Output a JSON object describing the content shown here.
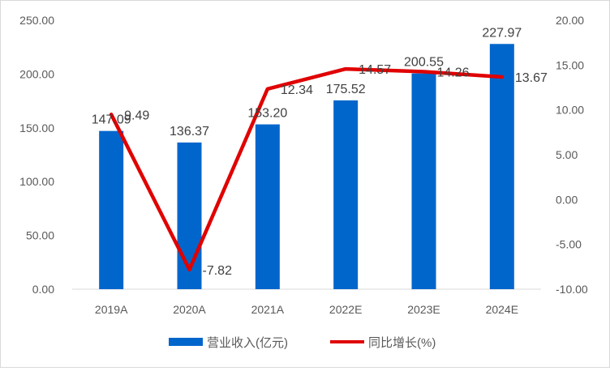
{
  "chart_data": {
    "type": "bar",
    "categories": [
      "2019A",
      "2020A",
      "2021A",
      "2022E",
      "2023E",
      "2024E"
    ],
    "series": [
      {
        "name": "营业收入(亿元)",
        "type": "bar",
        "axis": "left",
        "color": "#0066CC",
        "values": [
          147.09,
          136.37,
          153.2,
          175.52,
          200.55,
          227.97
        ],
        "labels": [
          "147.09",
          "136.37",
          "153.20",
          "175.52",
          "200.55",
          "227.97"
        ]
      },
      {
        "name": "同比增长(%)",
        "type": "line",
        "axis": "right",
        "color": "#E00000",
        "values": [
          9.49,
          -7.82,
          12.34,
          14.57,
          14.26,
          13.67
        ],
        "labels": [
          "9.49",
          "-7.82",
          "12.34",
          "14.57",
          "14.26",
          "13.67"
        ]
      }
    ],
    "y_left": {
      "min": 0,
      "max": 250,
      "step": 50,
      "tick_labels": [
        "0.00",
        "50.00",
        "100.00",
        "150.00",
        "200.00",
        "250.00"
      ]
    },
    "y_right": {
      "min": -10,
      "max": 20,
      "step": 5,
      "tick_labels": [
        "-10.00",
        "-5.00",
        "0.00",
        "5.00",
        "10.00",
        "15.00",
        "20.00"
      ]
    },
    "grid": false,
    "legend_position": "bottom"
  }
}
